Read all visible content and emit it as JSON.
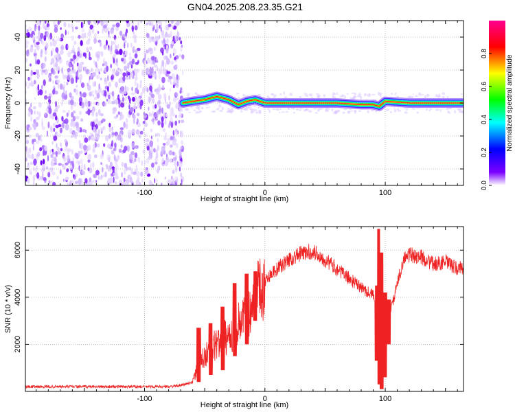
{
  "title": "GN04.2025.208.23.35.G21",
  "chart_data": [
    {
      "type": "heatmap",
      "title": "GN04.2025.208.23.35.G21",
      "xlabel": "Height of straight line (km)",
      "ylabel": "Frequency (Hz)",
      "xlim": [
        -199,
        165
      ],
      "ylim": [
        -50,
        50
      ],
      "xticks": [
        -100,
        0,
        100
      ],
      "yticks": [
        -40,
        -20,
        0,
        20,
        40
      ],
      "colorbar": {
        "label": "Normalized spectral amplitude",
        "range": [
          0,
          1
        ],
        "ticks": [
          "0.0",
          "0.2",
          "0.4",
          "0.6",
          "0.8"
        ],
        "colors": [
          "#ffffff",
          "#7b00ff",
          "#0000ff",
          "#00ffff",
          "#00ff00",
          "#ffff00",
          "#ff0000",
          "#ff00a0"
        ]
      },
      "noise_region_x": [
        -199,
        -68
      ],
      "signal_track": {
        "x": [
          -68,
          -60,
          -50,
          -40,
          -30,
          -22,
          -15,
          -8,
          0,
          20,
          40,
          60,
          80,
          90,
          95,
          100,
          120,
          140,
          165
        ],
        "y": [
          0,
          1,
          2,
          4,
          2,
          -1,
          1,
          2,
          0,
          0,
          0,
          0,
          -1,
          -1,
          -2,
          1,
          0,
          0,
          0
        ]
      }
    },
    {
      "type": "line",
      "xlabel": "Height of straight line (km)",
      "ylabel": "SNR (10 * v/v)",
      "xlim": [
        -199,
        165
      ],
      "ylim": [
        0,
        7000
      ],
      "xticks": [
        -100,
        0,
        100
      ],
      "yticks": [
        2000,
        4000,
        6000
      ],
      "series_color": "#ee2222",
      "x": [
        -199,
        -180,
        -160,
        -140,
        -120,
        -100,
        -80,
        -70,
        -60,
        -56,
        -50,
        -45,
        -40,
        -35,
        -30,
        -25,
        -20,
        -15,
        -10,
        -5,
        0,
        5,
        10,
        20,
        30,
        40,
        50,
        60,
        70,
        80,
        90,
        95,
        100,
        105,
        115,
        120,
        130,
        140,
        150,
        160,
        165
      ],
      "y": [
        200,
        200,
        200,
        200,
        200,
        200,
        200,
        250,
        400,
        1000,
        1500,
        1800,
        2000,
        2200,
        2400,
        2600,
        3000,
        3400,
        3800,
        4300,
        4700,
        5000,
        5200,
        5600,
        5850,
        5950,
        5600,
        5200,
        4800,
        4400,
        4100,
        2500,
        2800,
        3500,
        5600,
        5800,
        5700,
        5400,
        5500,
        5200,
        5300
      ],
      "spikes": [
        {
          "x": -55,
          "low": 400,
          "high": 2700
        },
        {
          "x": -45,
          "low": 700,
          "high": 2900
        },
        {
          "x": -35,
          "low": 900,
          "high": 3600
        },
        {
          "x": -25,
          "low": 1500,
          "high": 4600
        },
        {
          "x": -15,
          "low": 2000,
          "high": 5000
        },
        {
          "x": -8,
          "low": 3000,
          "high": 5100
        },
        {
          "x": 93,
          "low": 1300,
          "high": 4500
        },
        {
          "x": 95,
          "low": 300,
          "high": 6900
        },
        {
          "x": 97,
          "low": 100,
          "high": 5900
        },
        {
          "x": 100,
          "low": 600,
          "high": 4200
        },
        {
          "x": 103,
          "low": 2000,
          "high": 3900
        }
      ]
    }
  ]
}
